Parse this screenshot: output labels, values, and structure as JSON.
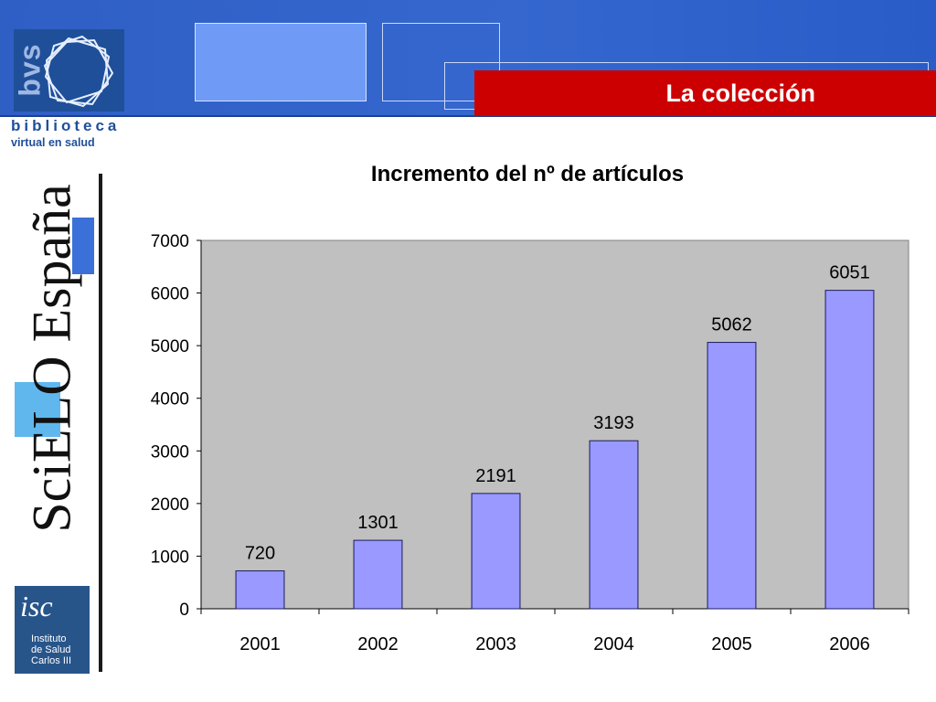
{
  "header": {
    "title": "La colección",
    "logo_line1": "biblioteca",
    "logo_line2": "virtual en salud",
    "logo_mark": "bvs"
  },
  "side": {
    "title": "SciELO España",
    "institute_mark": "isc",
    "institute_lines": [
      "Instituto",
      "de Salud",
      "Carlos III"
    ]
  },
  "colors": {
    "banner": "#3366cc",
    "title_box": "#cc0000",
    "plot_bg": "#c0c0c0",
    "bar_fill": "#9999ff",
    "bar_stroke": "#1a1a60"
  },
  "chart_data": {
    "type": "bar",
    "title": "Incremento del nº de artículos",
    "categories": [
      "2001",
      "2002",
      "2003",
      "2004",
      "2005",
      "2006"
    ],
    "values": [
      720,
      1301,
      2191,
      3193,
      5062,
      6051
    ],
    "data_labels": [
      "720",
      "1301",
      "2191",
      "3193",
      "5062",
      "6051"
    ],
    "ylim": [
      0,
      7000
    ],
    "yticks": [
      0,
      1000,
      2000,
      3000,
      4000,
      5000,
      6000,
      7000
    ],
    "grid": false,
    "legend": false
  }
}
